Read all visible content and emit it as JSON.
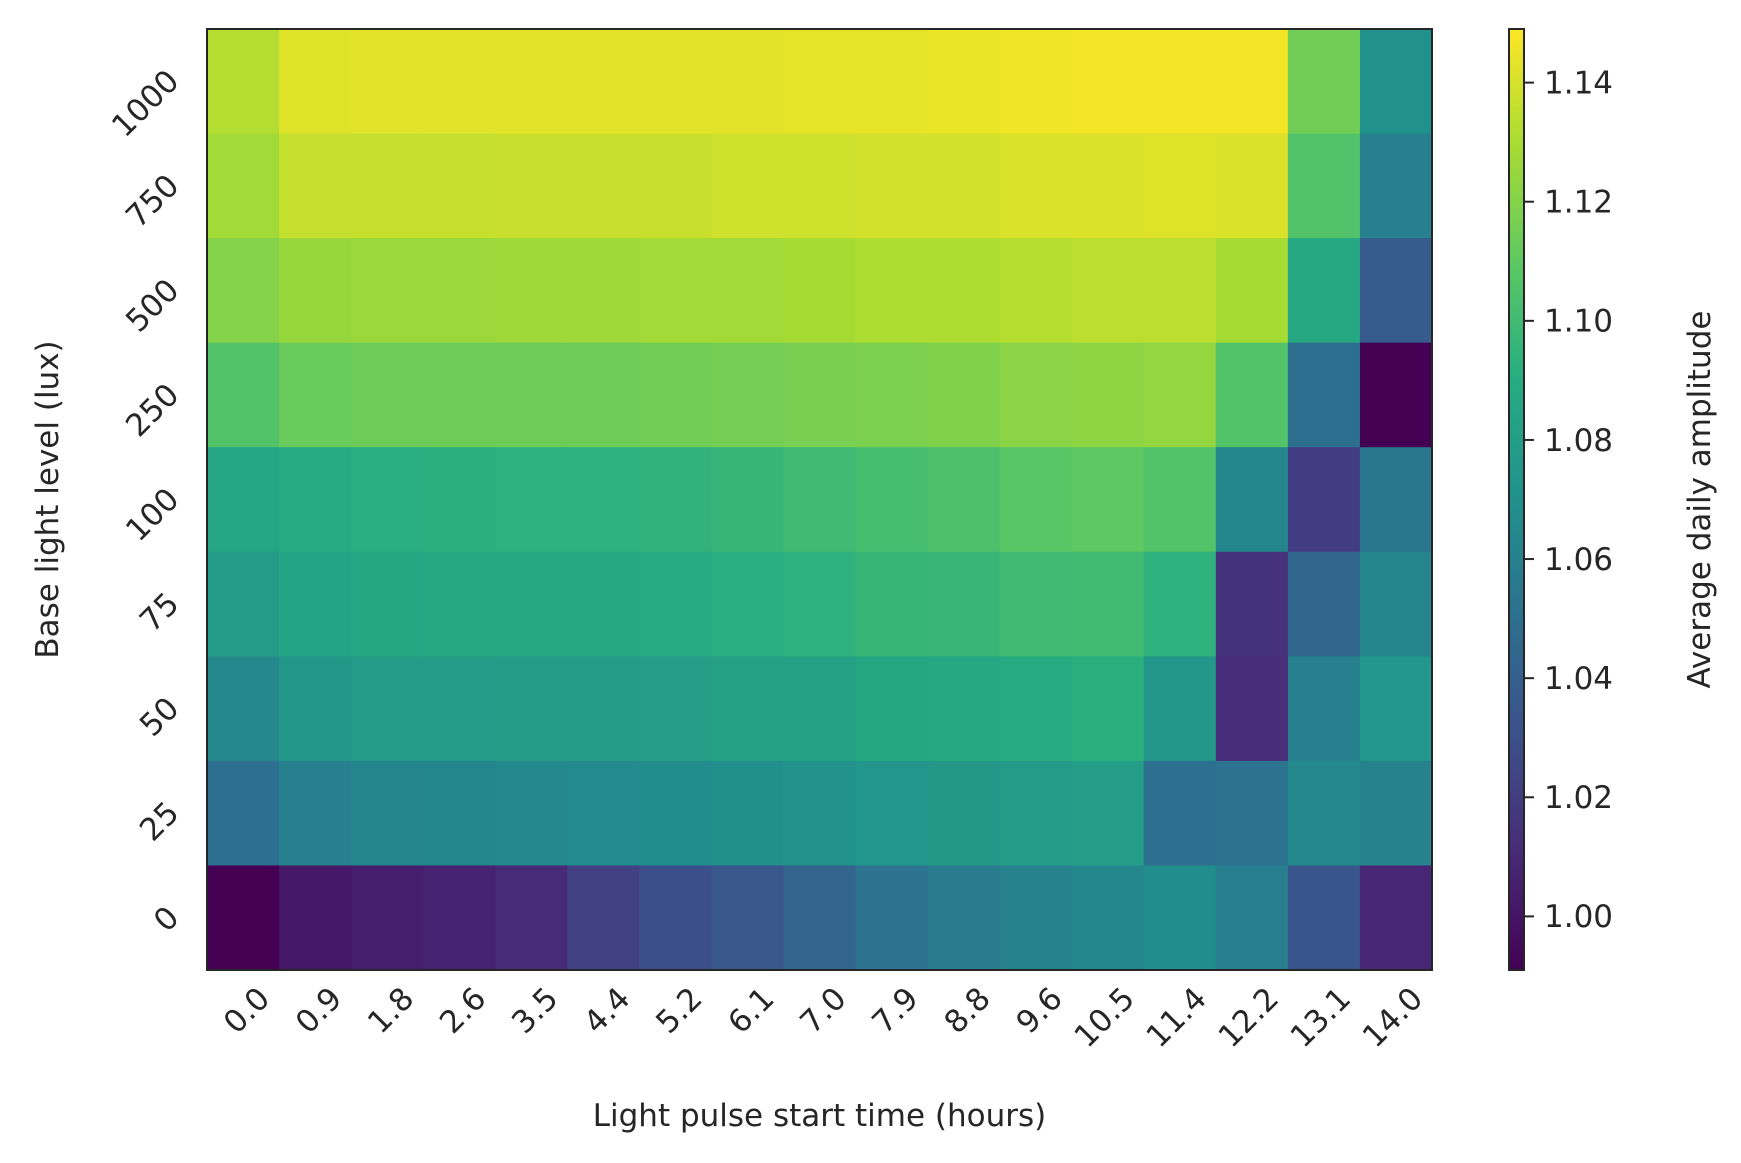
{
  "chart_data": {
    "type": "heatmap",
    "xlabel": "Light pulse start time (hours)",
    "ylabel": "Base light level (lux)",
    "colorbar_label": "Average daily amplitude",
    "colormap": "viridis",
    "x_categories": [
      "0.0",
      "0.9",
      "1.8",
      "2.6",
      "3.5",
      "4.4",
      "5.2",
      "6.1",
      "7.0",
      "7.9",
      "8.8",
      "9.6",
      "10.5",
      "11.4",
      "12.2",
      "13.1",
      "14.0"
    ],
    "y_categories": [
      "1000",
      "750",
      "500",
      "250",
      "100",
      "75",
      "50",
      "25",
      "0"
    ],
    "colorbar_range": [
      0.991,
      1.149
    ],
    "colorbar_ticks": [
      "1.00",
      "1.02",
      "1.04",
      "1.06",
      "1.08",
      "1.10",
      "1.12",
      "1.14"
    ],
    "values": [
      [
        1.132,
        1.142,
        1.143,
        1.143,
        1.143,
        1.143,
        1.143,
        1.143,
        1.144,
        1.144,
        1.145,
        1.146,
        1.147,
        1.147,
        1.147,
        1.115,
        1.071
      ],
      [
        1.128,
        1.136,
        1.136,
        1.136,
        1.137,
        1.137,
        1.137,
        1.138,
        1.138,
        1.139,
        1.139,
        1.141,
        1.141,
        1.142,
        1.141,
        1.106,
        1.06
      ],
      [
        1.12,
        1.125,
        1.126,
        1.126,
        1.127,
        1.127,
        1.128,
        1.128,
        1.129,
        1.131,
        1.131,
        1.132,
        1.134,
        1.134,
        1.129,
        1.087,
        1.037
      ],
      [
        1.106,
        1.113,
        1.114,
        1.114,
        1.114,
        1.114,
        1.115,
        1.116,
        1.117,
        1.118,
        1.119,
        1.122,
        1.123,
        1.124,
        1.106,
        1.05,
        0.991
      ],
      [
        1.085,
        1.089,
        1.091,
        1.092,
        1.093,
        1.093,
        1.094,
        1.096,
        1.099,
        1.102,
        1.104,
        1.108,
        1.11,
        1.106,
        1.064,
        1.02,
        1.054
      ],
      [
        1.078,
        1.084,
        1.086,
        1.087,
        1.087,
        1.087,
        1.089,
        1.091,
        1.093,
        1.096,
        1.097,
        1.099,
        1.1,
        1.093,
        1.014,
        1.044,
        1.063
      ],
      [
        1.065,
        1.075,
        1.078,
        1.078,
        1.079,
        1.079,
        1.08,
        1.082,
        1.083,
        1.086,
        1.088,
        1.09,
        1.092,
        1.075,
        1.012,
        1.06,
        1.074
      ],
      [
        1.05,
        1.06,
        1.063,
        1.064,
        1.066,
        1.067,
        1.068,
        1.07,
        1.072,
        1.074,
        1.076,
        1.078,
        1.08,
        1.05,
        1.052,
        1.066,
        1.062
      ],
      [
        0.991,
        1.002,
        1.005,
        1.007,
        1.011,
        1.022,
        1.03,
        1.035,
        1.043,
        1.052,
        1.057,
        1.062,
        1.064,
        1.068,
        1.059,
        1.034,
        1.009
      ]
    ],
    "grid": false
  }
}
